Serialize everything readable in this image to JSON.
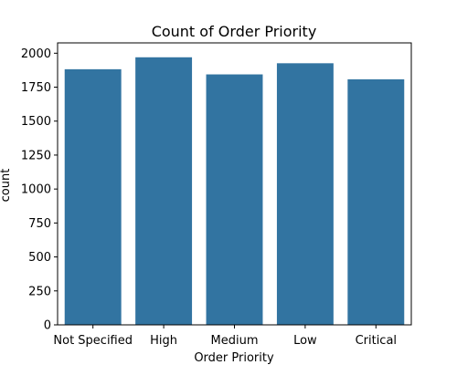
{
  "chart_data": {
    "type": "bar",
    "title": "Count of Order Priority",
    "xlabel": "Order Priority",
    "ylabel": "count",
    "categories": [
      "Not Specified",
      "High",
      "Medium",
      "Low",
      "Critical"
    ],
    "values": [
      1882,
      1970,
      1844,
      1926,
      1808
    ],
    "ylim": [
      0,
      2076
    ],
    "yticks": [
      0,
      250,
      500,
      750,
      1000,
      1250,
      1500,
      1750,
      2000
    ],
    "grid": false,
    "legend": "none",
    "bar_color": "#3274a1"
  }
}
